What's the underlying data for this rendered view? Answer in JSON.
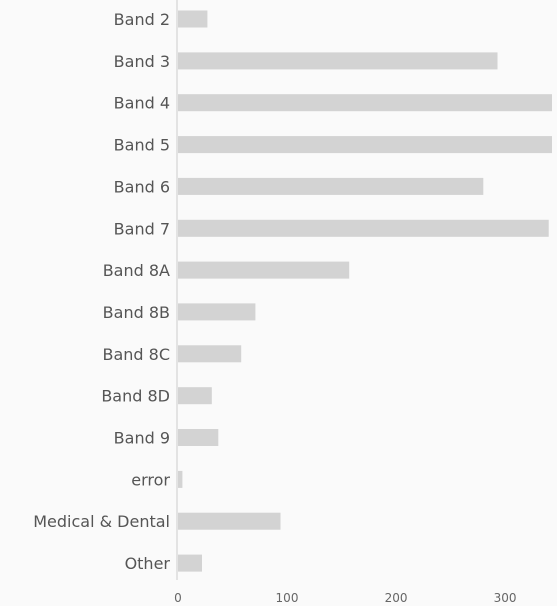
{
  "chart_data": {
    "type": "bar",
    "orientation": "horizontal",
    "categories": [
      "Band 2",
      "Band 3",
      "Band 4",
      "Band 5",
      "Band 6",
      "Band 7",
      "Band 8A",
      "Band 8B",
      "Band 8C",
      "Band 8D",
      "Band 9",
      "error",
      "Medical & Dental",
      "Other"
    ],
    "values": [
      27,
      293,
      343,
      343,
      280,
      340,
      157,
      71,
      58,
      31,
      37,
      4,
      94,
      22
    ],
    "x_ticks": [
      0,
      100,
      200,
      300
    ],
    "xlim": [
      0,
      343
    ],
    "grid": false,
    "legend": "none",
    "colors": {
      "bar": "#d3d3d3",
      "axis": "#cccccc",
      "text": "#555555",
      "background": "#fafafa"
    }
  }
}
